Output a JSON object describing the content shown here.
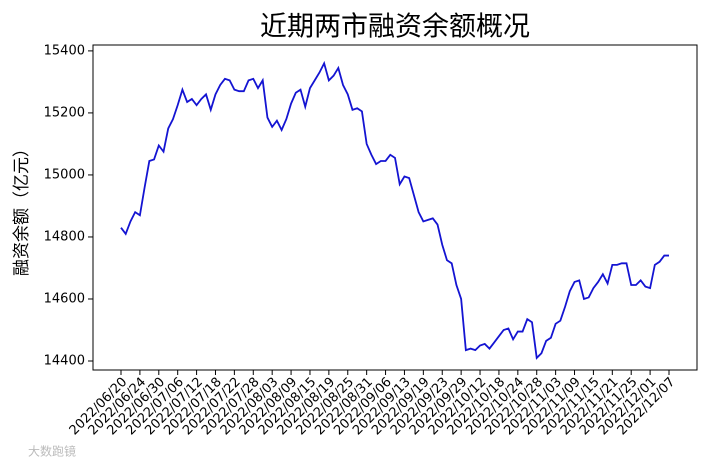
{
  "chart_data": {
    "type": "line",
    "title": "近期两市融资余额概况",
    "y_label": "融资余额（亿元）",
    "watermark": "大数跑镜",
    "color": "#1414d2",
    "categories": [
      "2022/06/20",
      null,
      null,
      null,
      "2022/06/24",
      null,
      null,
      null,
      "2022/06/30",
      null,
      null,
      null,
      "2022/07/06",
      null,
      null,
      null,
      "2022/07/12",
      null,
      null,
      null,
      "2022/07/18",
      null,
      null,
      null,
      "2022/07/22",
      null,
      null,
      null,
      "2022/07/28",
      null,
      null,
      null,
      "2022/08/03",
      null,
      null,
      null,
      "2022/08/09",
      null,
      null,
      null,
      "2022/08/15",
      null,
      null,
      null,
      "2022/08/19",
      null,
      null,
      null,
      "2022/08/25",
      null,
      null,
      null,
      "2022/08/31",
      null,
      null,
      null,
      "2022/09/06",
      null,
      null,
      null,
      "2022/09/13",
      null,
      null,
      null,
      "2022/09/19",
      null,
      null,
      null,
      "2022/09/23",
      null,
      null,
      null,
      "2022/09/29",
      null,
      null,
      null,
      "2022/10/12",
      null,
      null,
      null,
      "2022/10/18",
      null,
      null,
      null,
      "2022/10/24",
      null,
      null,
      null,
      "2022/10/28",
      null,
      null,
      null,
      "2022/11/03",
      null,
      null,
      null,
      "2022/11/09",
      null,
      null,
      null,
      "2022/11/15",
      null,
      null,
      null,
      "2022/11/21",
      null,
      null,
      null,
      "2022/11/25",
      null,
      null,
      null,
      "2022/12/01",
      null,
      null,
      null,
      "2022/12/07"
    ],
    "values": [
      14830,
      14810,
      14850,
      14880,
      14870,
      14960,
      15045,
      15050,
      15095,
      15075,
      15150,
      15180,
      15225,
      15275,
      15235,
      15245,
      15225,
      15245,
      15260,
      15210,
      15260,
      15290,
      15310,
      15305,
      15275,
      15270,
      15270,
      15305,
      15310,
      15280,
      15305,
      15185,
      15155,
      15175,
      15145,
      15180,
      15230,
      15265,
      15275,
      15220,
      15280,
      15305,
      15330,
      15360,
      15305,
      15320,
      15345,
      15290,
      15260,
      15210,
      15215,
      15205,
      15100,
      15065,
      15035,
      15045,
      15045,
      15065,
      15055,
      14970,
      14995,
      14990,
      14935,
      14880,
      14850,
      14855,
      14860,
      14840,
      14775,
      14725,
      14715,
      14645,
      14600,
      14435,
      14440,
      14435,
      14450,
      14455,
      14440,
      14460,
      14480,
      14500,
      14505,
      14470,
      14495,
      14495,
      14535,
      14525,
      14410,
      14425,
      14465,
      14475,
      14520,
      14530,
      14575,
      14625,
      14655,
      14660,
      14600,
      14605,
      14635,
      14655,
      14680,
      14650,
      14710,
      14710,
      14715,
      14715,
      14645,
      14645,
      14660,
      14640,
      14635,
      14710,
      14720,
      14740,
      14740
    ],
    "ylim": [
      14371,
      15419
    ],
    "yticks": [
      14400,
      14600,
      14800,
      15000,
      15200,
      15400
    ],
    "grid": false
  }
}
